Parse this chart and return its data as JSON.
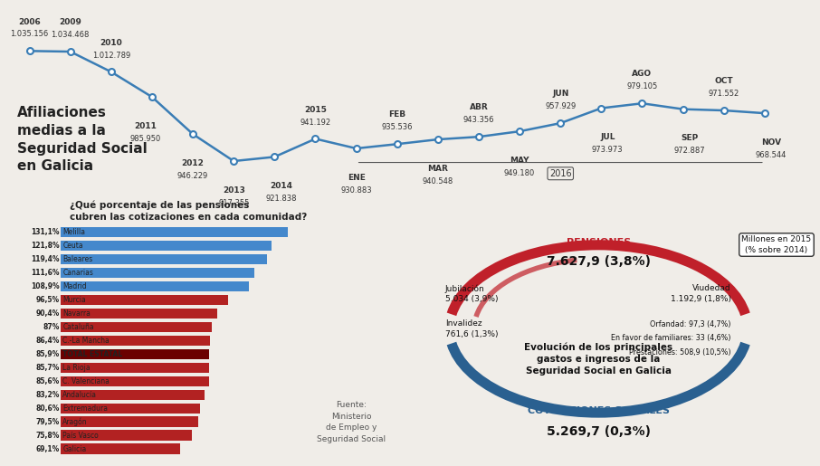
{
  "bg_color": "#f0ede8",
  "title_line": "Afiliaciones\nmedias a la\nSeguridad Social\nen Galicia",
  "line_years": [
    "2006",
    "2009",
    "2010",
    "2011",
    "2012",
    "2013",
    "2014",
    "2015",
    "ENE",
    "FEB",
    "MAR",
    "ABR",
    "MAY",
    "JUN",
    "JUL",
    "AGO",
    "SEP",
    "OCT",
    "NOV"
  ],
  "line_values": [
    1035156,
    1034468,
    1012789,
    985950,
    946229,
    917355,
    921838,
    941192,
    930883,
    935536,
    940548,
    943356,
    949180,
    957929,
    973973,
    979105,
    972887,
    971552,
    968544
  ],
  "line_color": "#3a7db5",
  "line_x": [
    0,
    1,
    2,
    3,
    4,
    5,
    6,
    7,
    8,
    9,
    10,
    11,
    12,
    13,
    14,
    15,
    16,
    17,
    18
  ],
  "bar_labels": [
    "131,1% Melilla",
    "121,8% Ceuta",
    "119,4% Baleares",
    "111,6% Canarias",
    "108,9% Madrid",
    "96,5% Murcia",
    "90,4% Navarra",
    "87% Cataluña",
    "86,4% C.-La Mancha",
    "85,9% TOTAL ESTATAL",
    "85,7% La Rioja",
    "85,6% C. Valenciana",
    "83,2% Andalucía",
    "80,6% Extremadura",
    "79,5% Aragón",
    "75,8% País Vasco",
    "69,1% Galicia"
  ],
  "bar_values": [
    131.1,
    121.8,
    119.4,
    111.6,
    108.9,
    96.5,
    90.4,
    87.0,
    86.4,
    85.9,
    85.7,
    85.6,
    83.2,
    80.6,
    79.5,
    75.8,
    69.1
  ],
  "bar_pcts": [
    "131,1%",
    "121,8%",
    "119,4%",
    "111,6%",
    "108,9%",
    "96,5%",
    "90,4%",
    "87%",
    "86,4%",
    "85,9%",
    "85,7%",
    "85,6%",
    "83,2%",
    "80,6%",
    "79,5%",
    "75,8%",
    "69,1%"
  ],
  "bar_names": [
    "Melilla",
    "Ceuta",
    "Baleares",
    "Canarias",
    "Madrid",
    "Murcia",
    "Navarra",
    "Cataluña",
    "C.-La Mancha",
    "TOTAL ESTATAL",
    "La Rioja",
    "C. Valenciana",
    "Andalucía",
    "Extremadura",
    "Aragón",
    "País Vasco",
    "Galicia"
  ],
  "bar_colors_red": "#b22222",
  "bar_color_dark": "#7a0a0a",
  "bar_over100_color": "#4488cc",
  "bar_total_color": "#6b0000",
  "question": "¿Qué porcentaje de las pensiones\ncubren las cotizaciones en cada comunidad?",
  "fuente_text": "Fuente:\nMinisterio\nde Empleo y\nSeguridad Social",
  "piggy_title": "Evolución de los principales\ngastos e ingresos de la\nSeguridad Social en Galicia",
  "pensiones_label": "PENSIONES",
  "pensiones_value": "7.627,9 (3,8%)",
  "jubilacion_label": "Jubilación\n5.034 (3,9%)",
  "invalidez_label": "Invalidez\n761,6 (1,3%)",
  "viudedad_label": "Viudedad\n1.192,9 (1,8%)",
  "orfandad_label": "Orfandad: 97,3 (4,7%)",
  "familiares_label": "En favor de familiares: 33 (4,6%)",
  "prestaciones_label": "Prestaciones: 508,9 (10,5%)",
  "cotizaciones_label": "COTIZACIONES SOCIALES",
  "cotizaciones_value": "5.269,7 (0,3%)",
  "millones_label": "Millones en 2015\n(% sobre 2014)",
  "red_arc_color": "#c0202a",
  "blue_arc_color": "#2a6090",
  "2016_label": "2016"
}
